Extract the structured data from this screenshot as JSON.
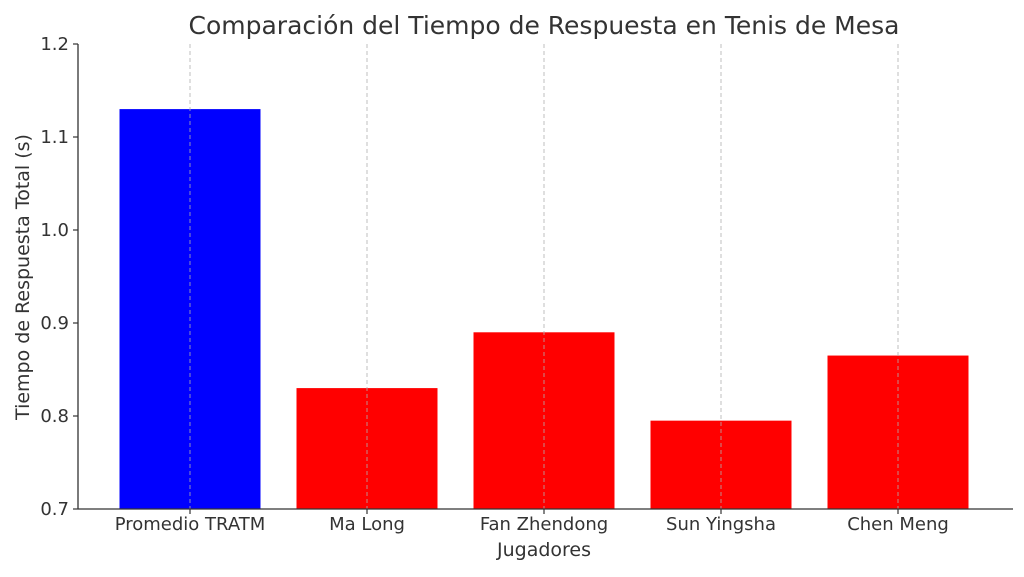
{
  "chart_data": {
    "type": "bar",
    "title": "Comparación del Tiempo de Respuesta en Tenis de Mesa",
    "xlabel": "Jugadores",
    "ylabel": "Tiempo de Respuesta Total (s)",
    "categories": [
      "Promedio TRATM",
      "Ma Long",
      "Fan Zhendong",
      "Sun Yingsha",
      "Chen Meng"
    ],
    "values": [
      1.13,
      0.83,
      0.89,
      0.795,
      0.865
    ],
    "bar_colors": [
      "#0000ff",
      "#ff0000",
      "#ff0000",
      "#ff0000",
      "#ff0000"
    ],
    "ylim": [
      0.7,
      1.2
    ],
    "yticks": [
      0.7,
      0.8,
      0.9,
      1.0,
      1.1,
      1.2
    ],
    "ytick_labels": [
      "0.7",
      "0.8",
      "0.9",
      "1.0",
      "1.1",
      "1.2"
    ],
    "grid": "vertical dashed gridlines at each category",
    "legend": "none"
  }
}
